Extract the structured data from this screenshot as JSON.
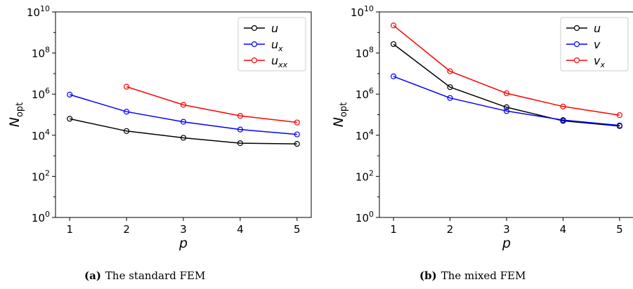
{
  "captions": [
    {
      "tag": "(a)",
      "text": "The standard FEM"
    },
    {
      "tag": "(b)",
      "text": "The mixed FEM"
    }
  ],
  "chart_data": [
    {
      "type": "line",
      "xlabel": "p",
      "ylabel": "N",
      "ylabel_sub": "opt",
      "yscale": "log",
      "ylim_exp": [
        0,
        10
      ],
      "ytick_exps": [
        0,
        2,
        4,
        6,
        8,
        10
      ],
      "xlim": [
        0.75,
        5.25
      ],
      "x_ticks": [
        1,
        2,
        3,
        4,
        5
      ],
      "grid": false,
      "legend_position": "top-right",
      "series": [
        {
          "name": "u",
          "name_sub": "",
          "color": "#000000",
          "x": [
            1,
            2,
            3,
            4,
            5
          ],
          "y": [
            63000,
            16000,
            7500,
            4100,
            3800
          ]
        },
        {
          "name": "u",
          "name_sub": "x",
          "color": "#0000ff",
          "x": [
            1,
            2,
            3,
            4,
            5
          ],
          "y": [
            950000,
            140000,
            45000,
            19000,
            11000
          ]
        },
        {
          "name": "u",
          "name_sub": "xx",
          "color": "#ff0000",
          "x": [
            2,
            3,
            4,
            5
          ],
          "y": [
            2300000,
            300000,
            88000,
            42000
          ]
        }
      ]
    },
    {
      "type": "line",
      "xlabel": "p",
      "ylabel": "N",
      "ylabel_sub": "opt",
      "yscale": "log",
      "ylim_exp": [
        0,
        10
      ],
      "ytick_exps": [
        0,
        2,
        4,
        6,
        8,
        10
      ],
      "xlim": [
        0.75,
        5.25
      ],
      "x_ticks": [
        1,
        2,
        3,
        4,
        5
      ],
      "grid": false,
      "legend_position": "top-right",
      "series": [
        {
          "name": "u",
          "name_sub": "",
          "color": "#000000",
          "x": [
            1,
            2,
            3,
            4,
            5
          ],
          "y": [
            270000000,
            2200000,
            230000,
            50000,
            28000
          ]
        },
        {
          "name": "v",
          "name_sub": "",
          "color": "#0000ff",
          "x": [
            1,
            2,
            3,
            4,
            5
          ],
          "y": [
            7300000,
            650000,
            150000,
            55000,
            30000
          ]
        },
        {
          "name": "v",
          "name_sub": "x",
          "color": "#ff0000",
          "x": [
            1,
            2,
            3,
            4,
            5
          ],
          "y": [
            2200000000,
            13000000,
            1100000,
            250000,
            95000
          ]
        }
      ]
    }
  ]
}
